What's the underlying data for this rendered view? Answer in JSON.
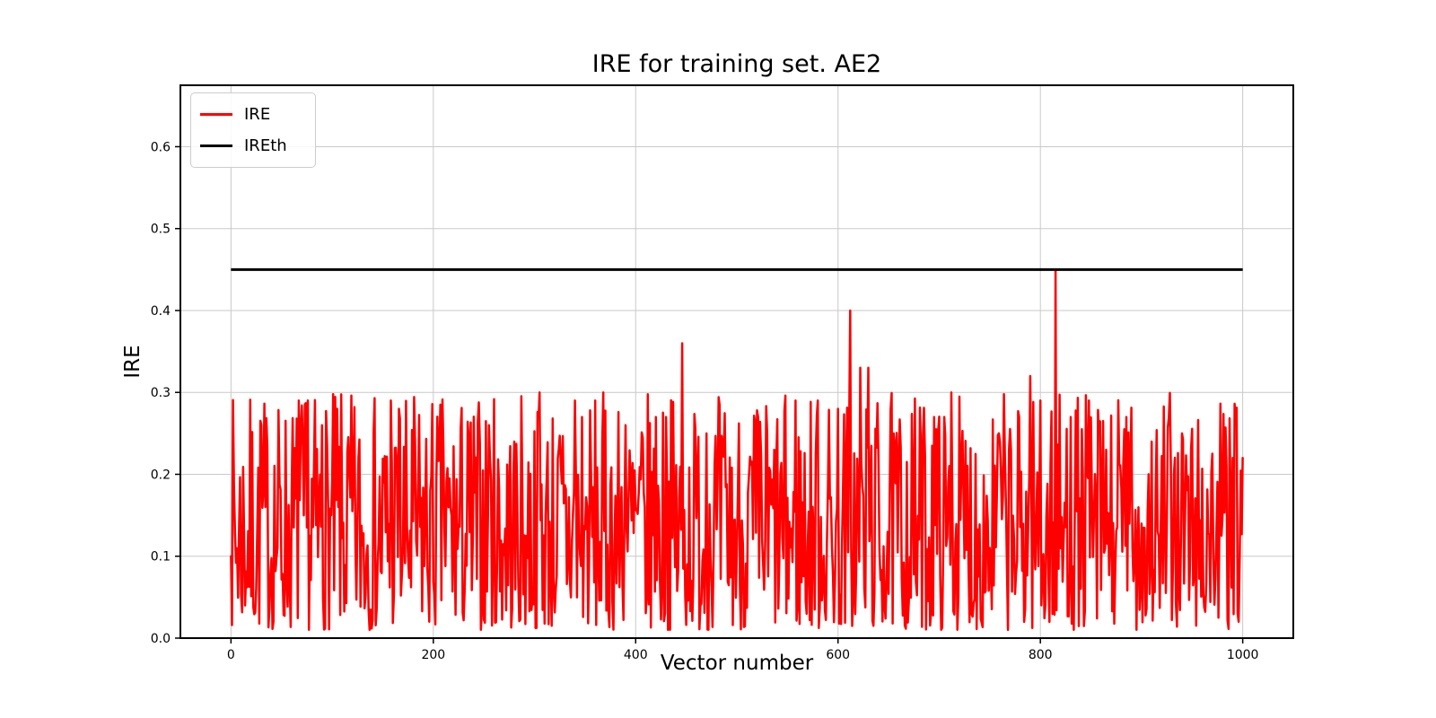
{
  "figure": {
    "title": "IRE for training set. AE2",
    "xlabel": "Vector number",
    "ylabel": "IRE",
    "background_color": "#ffffff"
  },
  "legend": {
    "position": "upper left",
    "items": [
      {
        "label": "IRE",
        "color": "#ff0000"
      },
      {
        "label": "IREth",
        "color": "#000000"
      }
    ]
  },
  "chart_data": {
    "type": "line",
    "title": "IRE for training set. AE2",
    "xlabel": "Vector number",
    "ylabel": "IRE",
    "xlim": [
      -50,
      1050
    ],
    "ylim": [
      0,
      0.675
    ],
    "x_ticks": [
      0,
      200,
      400,
      600,
      800,
      1000
    ],
    "y_ticks": [
      0.0,
      0.1,
      0.2,
      0.3,
      0.4,
      0.5,
      0.6
    ],
    "grid": true,
    "grid_color": "#c9c9c9",
    "spine_color": "#000000",
    "legend_position": "upper left",
    "series": [
      {
        "name": "IRE",
        "color": "#ff0000",
        "line_width": 2.5,
        "kind": "noisy",
        "x_start": 0,
        "x_end": 1000,
        "n_points": 1001,
        "noise": {
          "seed": 7,
          "min": 0.01,
          "max": 0.3,
          "exponent": 1.4
        },
        "notable_points": [
          {
            "x": 0,
            "y": 0.1
          },
          {
            "x": 30,
            "y": 0.26
          },
          {
            "x": 67,
            "y": 0.29
          },
          {
            "x": 76,
            "y": 0.29
          },
          {
            "x": 90,
            "y": 0.26
          },
          {
            "x": 105,
            "y": 0.28
          },
          {
            "x": 158,
            "y": 0.29
          },
          {
            "x": 166,
            "y": 0.28
          },
          {
            "x": 210,
            "y": 0.23
          },
          {
            "x": 255,
            "y": 0.26
          },
          {
            "x": 280,
            "y": 0.24
          },
          {
            "x": 305,
            "y": 0.3
          },
          {
            "x": 340,
            "y": 0.29
          },
          {
            "x": 347,
            "y": 0.27
          },
          {
            "x": 390,
            "y": 0.26
          },
          {
            "x": 420,
            "y": 0.27
          },
          {
            "x": 430,
            "y": 0.27
          },
          {
            "x": 446,
            "y": 0.36
          },
          {
            "x": 470,
            "y": 0.25
          },
          {
            "x": 530,
            "y": 0.25
          },
          {
            "x": 558,
            "y": 0.29
          },
          {
            "x": 580,
            "y": 0.29
          },
          {
            "x": 600,
            "y": 0.28
          },
          {
            "x": 612,
            "y": 0.4
          },
          {
            "x": 622,
            "y": 0.33
          },
          {
            "x": 630,
            "y": 0.33
          },
          {
            "x": 655,
            "y": 0.25
          },
          {
            "x": 695,
            "y": 0.27
          },
          {
            "x": 705,
            "y": 0.27
          },
          {
            "x": 712,
            "y": 0.3
          },
          {
            "x": 760,
            "y": 0.24
          },
          {
            "x": 790,
            "y": 0.32
          },
          {
            "x": 800,
            "y": 0.29
          },
          {
            "x": 815,
            "y": 0.45
          },
          {
            "x": 830,
            "y": 0.27
          },
          {
            "x": 848,
            "y": 0.29
          },
          {
            "x": 865,
            "y": 0.23
          },
          {
            "x": 885,
            "y": 0.27
          },
          {
            "x": 910,
            "y": 0.24
          },
          {
            "x": 940,
            "y": 0.25
          },
          {
            "x": 990,
            "y": 0.22
          },
          {
            "x": 1000,
            "y": 0.22
          }
        ]
      },
      {
        "name": "IREth",
        "color": "#000000",
        "line_width": 3,
        "kind": "constant",
        "x_start": 0,
        "x_end": 1000,
        "value": 0.45
      }
    ]
  },
  "layout_note": "threshold line IREth = 0.45 spans x 0..1000; noisy IRE series stays between 0.01 and 0.30 except listed notable points"
}
